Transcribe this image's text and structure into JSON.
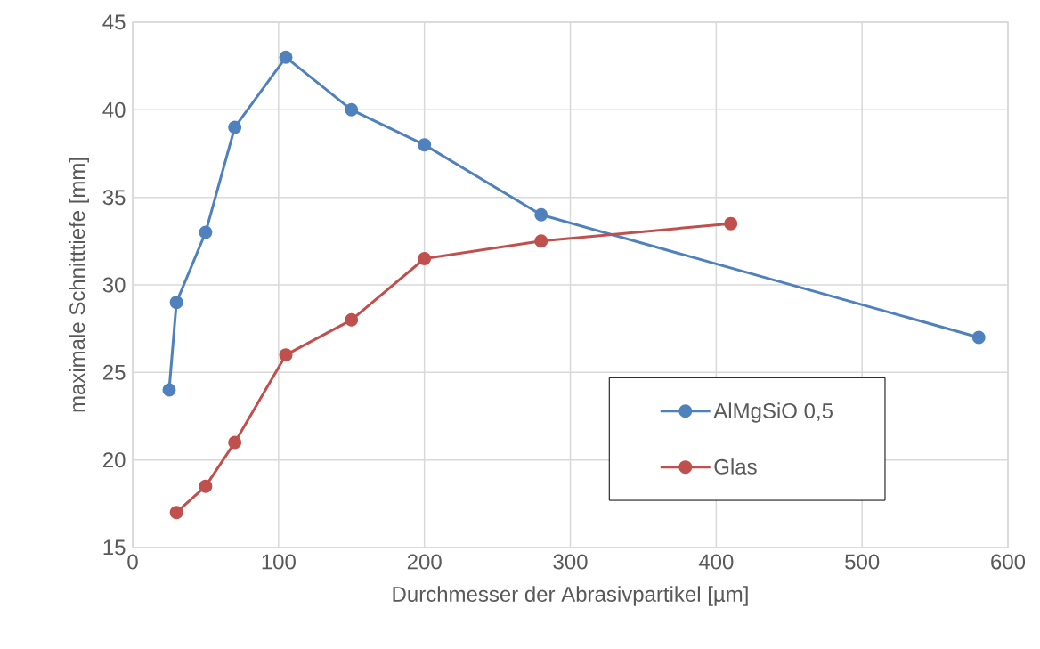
{
  "chart_data": {
    "type": "line",
    "xlabel": "Durchmesser der Abrasivpartikel [µm]",
    "ylabel": "maximale Schnitttiefe [mm]",
    "xlim": [
      0,
      600
    ],
    "xticks": [
      0,
      100,
      200,
      300,
      400,
      500,
      600
    ],
    "ylim": [
      15,
      45
    ],
    "yticks": [
      15,
      20,
      25,
      30,
      35,
      40,
      45
    ],
    "grid": true,
    "legend": "bottom right",
    "marker": "circle",
    "line_style": "solid",
    "series": [
      {
        "name": "AlMgSiO 0,5",
        "color": "#4f81bd",
        "x": [
          25,
          30,
          50,
          70,
          105,
          150,
          200,
          280,
          580
        ],
        "values": [
          24,
          29,
          33,
          39,
          43,
          40,
          38,
          34,
          27
        ]
      },
      {
        "name": "Glas",
        "color": "#c0504d",
        "x": [
          30,
          50,
          70,
          105,
          150,
          200,
          280,
          410
        ],
        "values": [
          17,
          18.5,
          21,
          26,
          28,
          31.5,
          32.5,
          33.5
        ]
      }
    ]
  }
}
